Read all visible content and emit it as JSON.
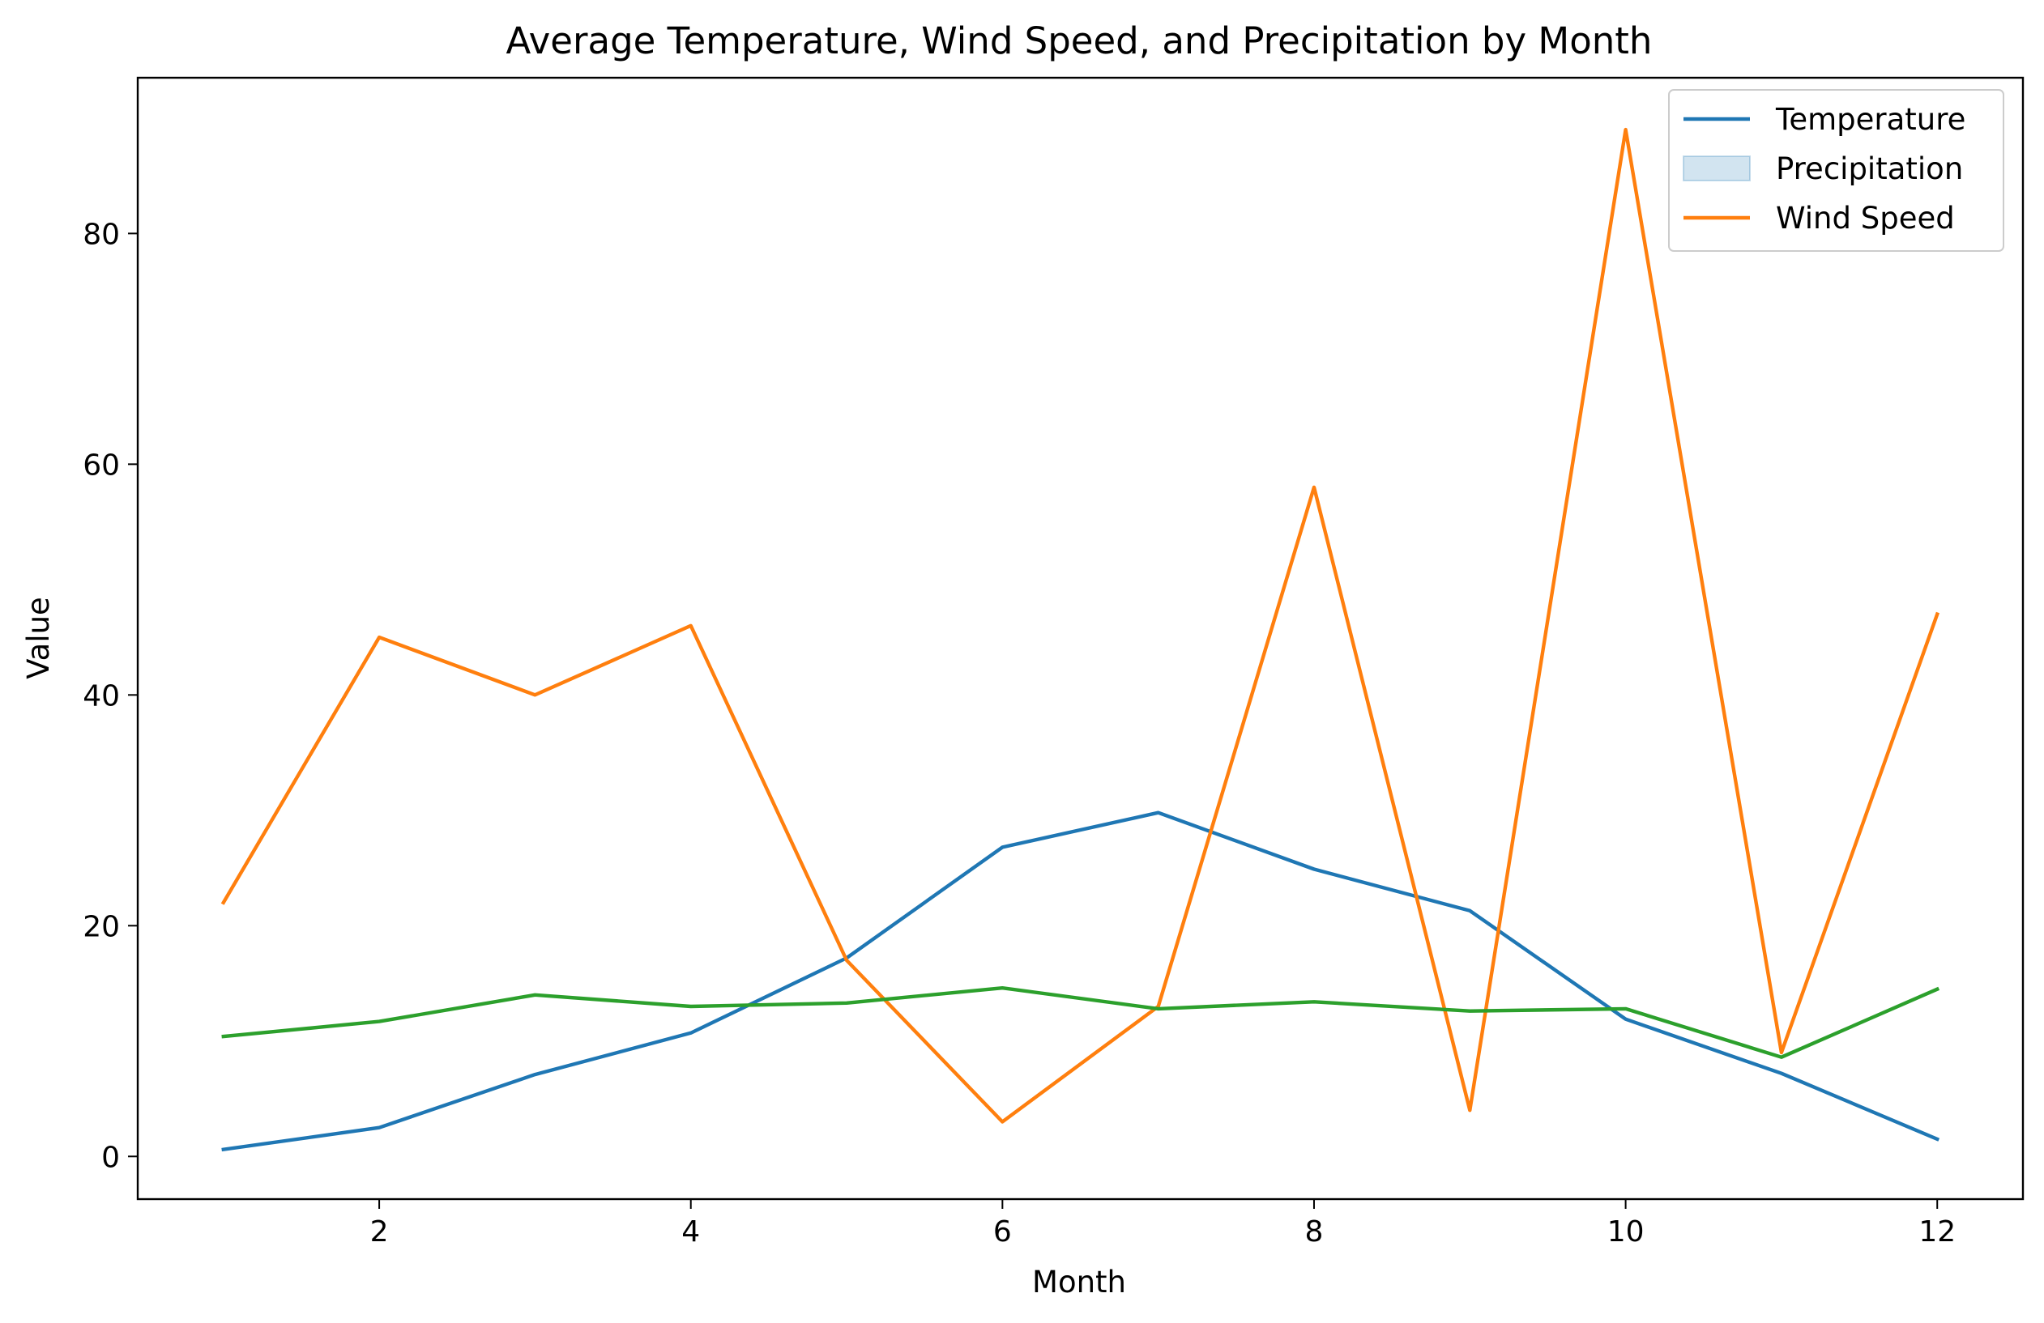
{
  "chart_data": {
    "type": "line",
    "title": "Average Temperature, Wind Speed, and Precipitation by Month",
    "xlabel": "Month",
    "ylabel": "Value",
    "x": [
      1,
      2,
      3,
      4,
      5,
      6,
      7,
      8,
      9,
      10,
      11,
      12
    ],
    "xlim": [
      0.45,
      12.55
    ],
    "ylim": [
      -3.7,
      93.5
    ],
    "xticks": [
      2,
      4,
      6,
      8,
      10,
      12
    ],
    "yticks": [
      0,
      20,
      40,
      60,
      80
    ],
    "grid": false,
    "legend_position": "top-right",
    "series": [
      {
        "name": "Temperature",
        "color": "#1f77b4",
        "values": [
          0.6,
          2.5,
          7.1,
          10.7,
          17.2,
          26.8,
          29.8,
          24.9,
          21.3,
          11.9,
          7.2,
          1.5
        ]
      },
      {
        "name": "Wind Speed",
        "color": "#ff7f0e",
        "values": [
          22.0,
          45.0,
          40.0,
          46.0,
          17.0,
          3.0,
          13.0,
          58.0,
          4.0,
          89.0,
          9.0,
          47.0
        ]
      },
      {
        "name": "",
        "color": "#2ca02c",
        "values": [
          10.4,
          11.7,
          14.0,
          13.0,
          13.3,
          14.6,
          12.8,
          13.4,
          12.6,
          12.8,
          8.6,
          14.5
        ]
      }
    ],
    "legend": [
      {
        "label": "Temperature",
        "kind": "line",
        "color": "#1f77b4"
      },
      {
        "label": "Precipitation",
        "kind": "patch",
        "color": "#1f77b4"
      },
      {
        "label": "Wind Speed",
        "kind": "line",
        "color": "#ff7f0e"
      }
    ]
  }
}
